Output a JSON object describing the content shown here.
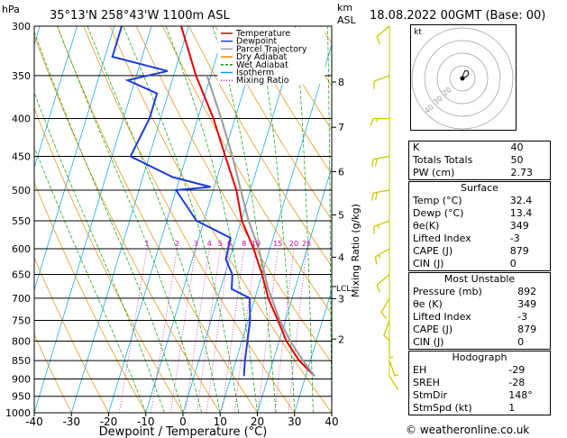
{
  "header": {
    "location": "35°13'N  258°43'W  1100m  ASL",
    "date": "18.08.2022  00GMT  (Base: 00)",
    "hpa_label": "hPa",
    "km_label": "km",
    "asl_label": "ASL"
  },
  "chart_data": {
    "type": "line",
    "title": "35°13'N  258°43'W  1100m  ASL",
    "xlabel": "Dewpoint / Temperature (°C)",
    "ylabel": "hPa",
    "right_label": "Mixing Ratio (g/kg)",
    "xlim": [
      -40,
      40
    ],
    "ylim": [
      1000,
      300
    ],
    "pressure_ticks": [
      300,
      350,
      400,
      450,
      500,
      550,
      600,
      650,
      700,
      750,
      800,
      850,
      900,
      950,
      1000
    ],
    "temp_ticks": [
      -40,
      -30,
      -20,
      -10,
      0,
      10,
      20,
      30,
      40
    ],
    "km_ticks": [
      {
        "label": "8",
        "p": 357
      },
      {
        "label": "7",
        "p": 411
      },
      {
        "label": "6",
        "p": 472
      },
      {
        "label": "5",
        "p": 540
      },
      {
        "label": "4",
        "p": 616
      },
      {
        "label": "3",
        "p": 701
      },
      {
        "label": "2",
        "p": 795
      }
    ],
    "lcl_label": "LCL",
    "lcl_p": 675,
    "mixing_ratio_labels": [
      "1",
      "2",
      "3",
      "4",
      "5",
      "6",
      "8",
      "10",
      "15",
      "20",
      "25"
    ],
    "mixing_ratio_values": [
      1,
      2,
      3,
      4,
      5,
      6,
      8,
      10,
      15,
      20,
      25
    ],
    "legend": [
      {
        "name": "Temperature",
        "color": "#e60000"
      },
      {
        "name": "Dewpoint",
        "color": "#1e3cdc"
      },
      {
        "name": "Parcel Trajectory",
        "color": "#999999"
      },
      {
        "name": "Dry Adiabat",
        "color": "#e68a00"
      },
      {
        "name": "Wet Adiabat",
        "color": "#00a000"
      },
      {
        "name": "Isotherm",
        "color": "#00a0e6"
      },
      {
        "name": "Mixing Ratio",
        "color": "#d000a0"
      }
    ],
    "series": [
      {
        "name": "Temperature",
        "color": "#e60000",
        "points": [
          [
            892,
            32.4
          ],
          [
            850,
            27.0
          ],
          [
            800,
            22.0
          ],
          [
            750,
            18.0
          ],
          [
            700,
            13.6
          ],
          [
            650,
            10.0
          ],
          [
            600,
            5.6
          ],
          [
            550,
            0.2
          ],
          [
            500,
            -3.8
          ],
          [
            450,
            -9.5
          ],
          [
            400,
            -15.8
          ],
          [
            350,
            -24.0
          ],
          [
            300,
            -32.0
          ]
        ]
      },
      {
        "name": "Dewpoint",
        "color": "#1e3cdc",
        "points": [
          [
            892,
            13.4
          ],
          [
            850,
            12.4
          ],
          [
            800,
            11.5
          ],
          [
            750,
            10.5
          ],
          [
            700,
            8.6
          ],
          [
            680,
            3.0
          ],
          [
            650,
            2.0
          ],
          [
            620,
            -1.0
          ],
          [
            580,
            -1.5
          ],
          [
            550,
            -12.0
          ],
          [
            500,
            -20.0
          ],
          [
            495,
            -11.0
          ],
          [
            480,
            -22.0
          ],
          [
            450,
            -35.0
          ],
          [
            400,
            -33.0
          ],
          [
            370,
            -33.0
          ],
          [
            355,
            -42.0
          ],
          [
            345,
            -32.0
          ],
          [
            330,
            -48.0
          ],
          [
            300,
            -48.0
          ]
        ]
      },
      {
        "name": "Parcel Trajectory",
        "color": "#999999",
        "points": [
          [
            892,
            32.4
          ],
          [
            850,
            28.0
          ],
          [
            800,
            23.0
          ],
          [
            750,
            18.5
          ],
          [
            700,
            14.5
          ],
          [
            680,
            12.8
          ],
          [
            650,
            10.7
          ],
          [
            600,
            7.0
          ],
          [
            550,
            2.0
          ],
          [
            500,
            -2.6
          ],
          [
            450,
            -7.6
          ],
          [
            400,
            -13.7
          ],
          [
            350,
            -21.0
          ]
        ]
      }
    ],
    "wind_barbs": [
      {
        "p": 892,
        "dir": 148,
        "kt": 1
      },
      {
        "p": 850,
        "dir": 160,
        "kt": 5
      },
      {
        "p": 800,
        "dir": 180,
        "kt": 5
      },
      {
        "p": 750,
        "dir": 200,
        "kt": 10
      },
      {
        "p": 700,
        "dir": 210,
        "kt": 10
      },
      {
        "p": 650,
        "dir": 230,
        "kt": 10
      },
      {
        "p": 600,
        "dir": 240,
        "kt": 15
      },
      {
        "p": 550,
        "dir": 250,
        "kt": 15
      },
      {
        "p": 500,
        "dir": 260,
        "kt": 20
      },
      {
        "p": 450,
        "dir": 260,
        "kt": 20
      },
      {
        "p": 400,
        "dir": 270,
        "kt": 15
      },
      {
        "p": 350,
        "dir": 250,
        "kt": 10
      },
      {
        "p": 300,
        "dir": 230,
        "kt": 10
      }
    ]
  },
  "hodograph": {
    "label": "kt",
    "ring_labels": [
      "20",
      "30",
      "40"
    ],
    "points_kt": [
      [
        0,
        -1
      ],
      [
        1,
        -4
      ],
      [
        2,
        -6
      ],
      [
        4,
        -6
      ],
      [
        5,
        -4
      ],
      [
        4,
        -2
      ],
      [
        0,
        0
      ]
    ]
  },
  "indices": {
    "top": [
      {
        "label": "K",
        "value": "40"
      },
      {
        "label": "Totals Totals",
        "value": "50"
      },
      {
        "label": "PW (cm)",
        "value": "2.73"
      }
    ],
    "surface": {
      "title": "Surface",
      "rows": [
        {
          "label": "Temp (°C)",
          "value": "32.4"
        },
        {
          "label": "Dewp (°C)",
          "value": "13.4"
        },
        {
          "label": "θe(K)",
          "value": "349"
        },
        {
          "label": "Lifted Index",
          "value": "-3"
        },
        {
          "label": "CAPE (J)",
          "value": "879"
        },
        {
          "label": "CIN (J)",
          "value": "0"
        }
      ]
    },
    "most_unstable": {
      "title": "Most Unstable",
      "rows": [
        {
          "label": "Pressure (mb)",
          "value": "892"
        },
        {
          "label": "θe (K)",
          "value": "349"
        },
        {
          "label": "Lifted Index",
          "value": "-3"
        },
        {
          "label": "CAPE (J)",
          "value": "879"
        },
        {
          "label": "CIN (J)",
          "value": "0"
        }
      ]
    },
    "hodograph": {
      "title": "Hodograph",
      "rows": [
        {
          "label": "EH",
          "value": "-29"
        },
        {
          "label": "SREH",
          "value": "-28"
        },
        {
          "label": "StmDir",
          "value": "148°"
        },
        {
          "label": "StmSpd (kt)",
          "value": "1"
        }
      ]
    }
  },
  "credit": "© weatheronline.co.uk"
}
